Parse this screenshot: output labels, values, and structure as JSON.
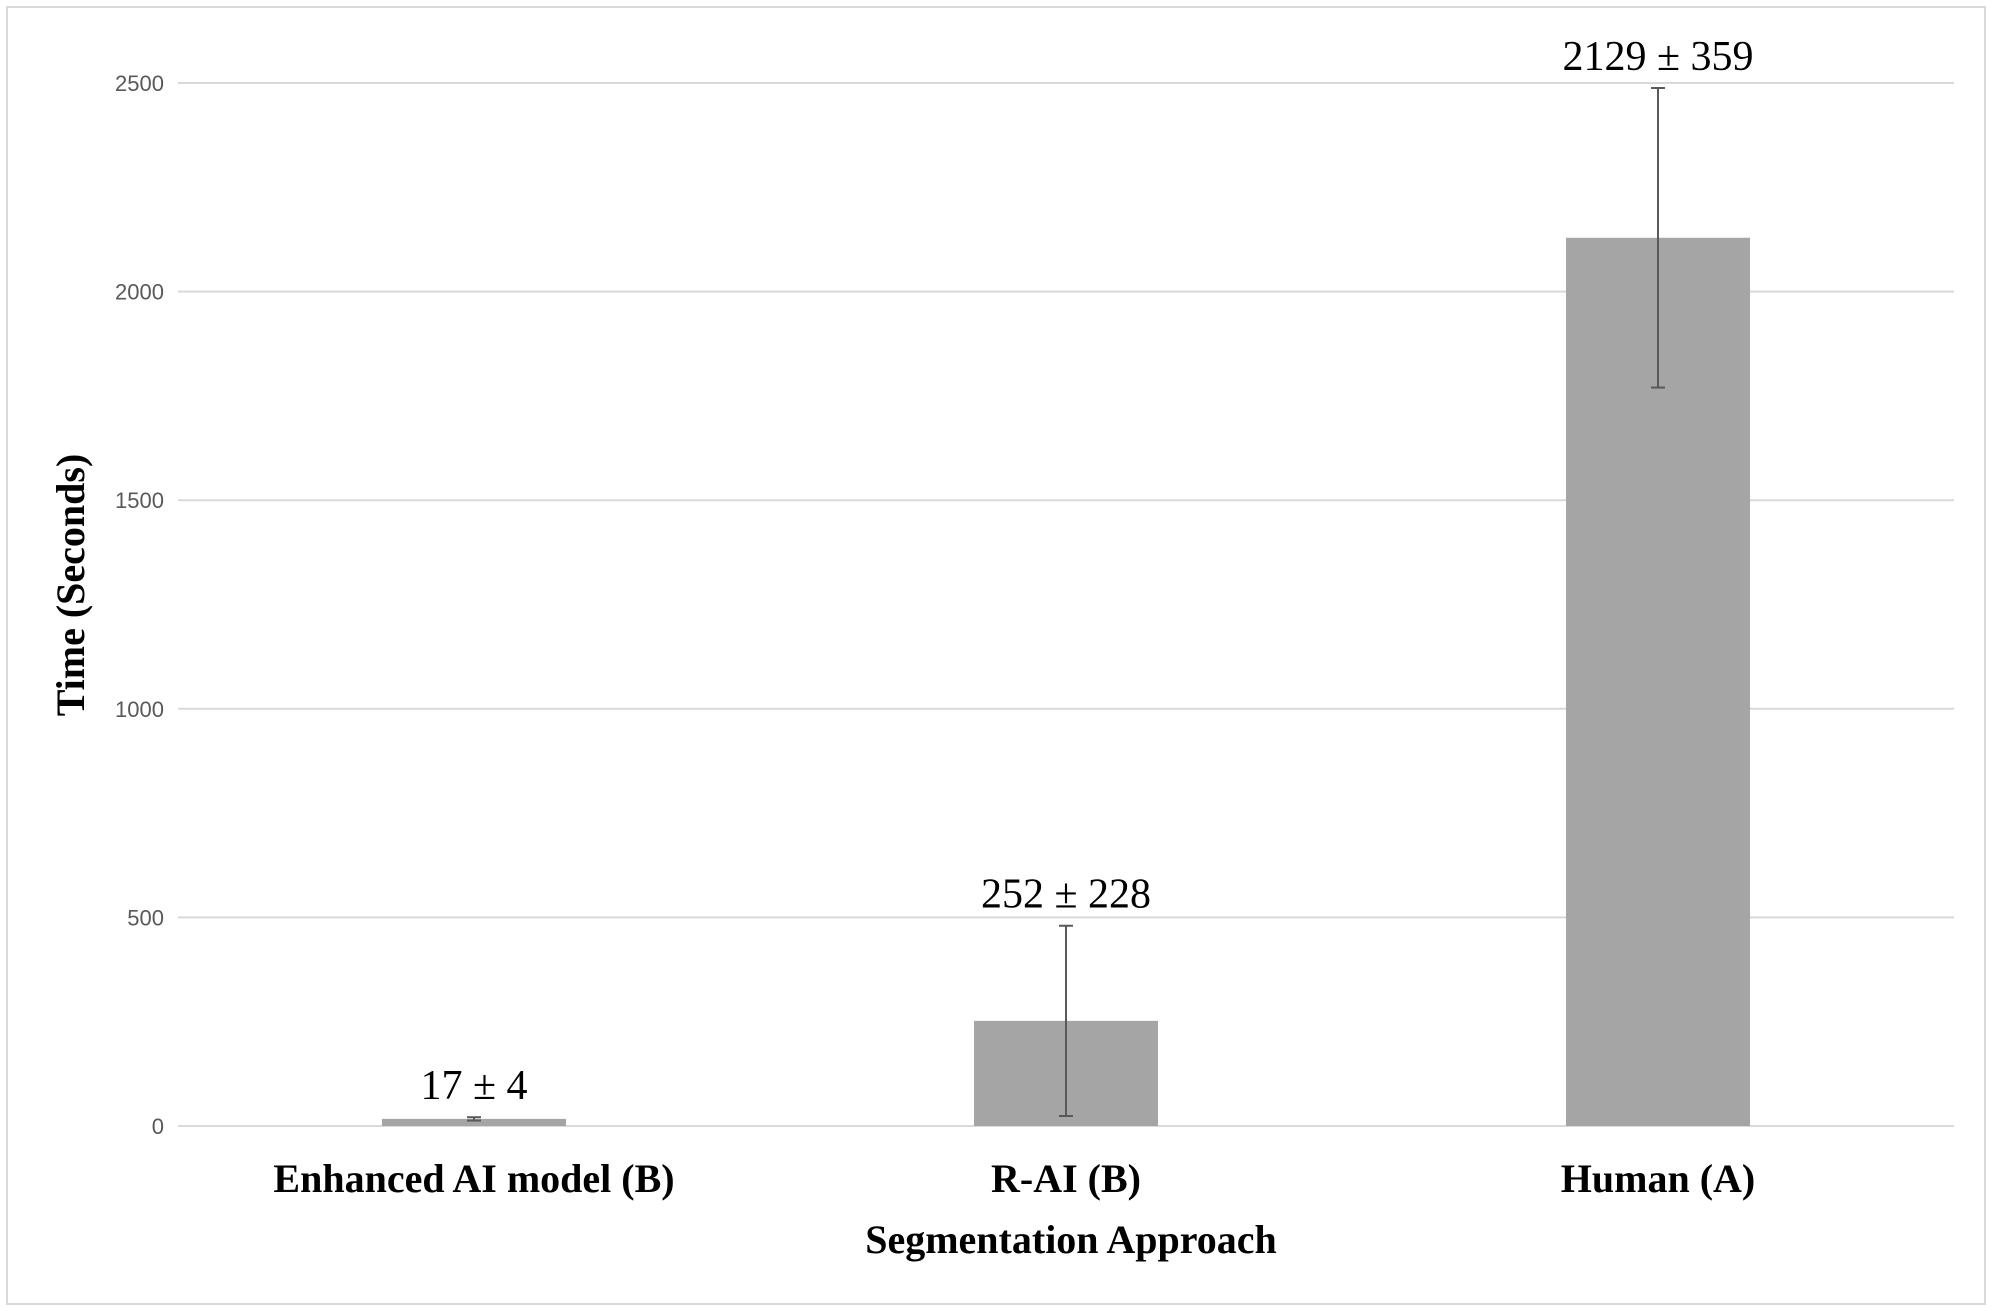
{
  "chart_data": {
    "type": "bar",
    "title": "",
    "xlabel": "Segmentation Approach",
    "ylabel": "Time (Seconds)",
    "categories": [
      "Enhanced AI model (B)",
      "R-AI (B)",
      "Human (A)"
    ],
    "values": [
      17,
      252,
      2129
    ],
    "errors": [
      4,
      228,
      359
    ],
    "data_labels": [
      "17 ± 4",
      "252 ± 228",
      "2129 ± 359"
    ],
    "yticks": [
      0,
      500,
      1000,
      1500,
      2000,
      2500
    ],
    "ylim": [
      0,
      2500
    ],
    "grid": true,
    "legend": "none",
    "colors": {
      "bar": "#a5a5a5",
      "grid": "#d9d9d9",
      "error_bar": "#595959",
      "tick_text": "#595959"
    }
  }
}
